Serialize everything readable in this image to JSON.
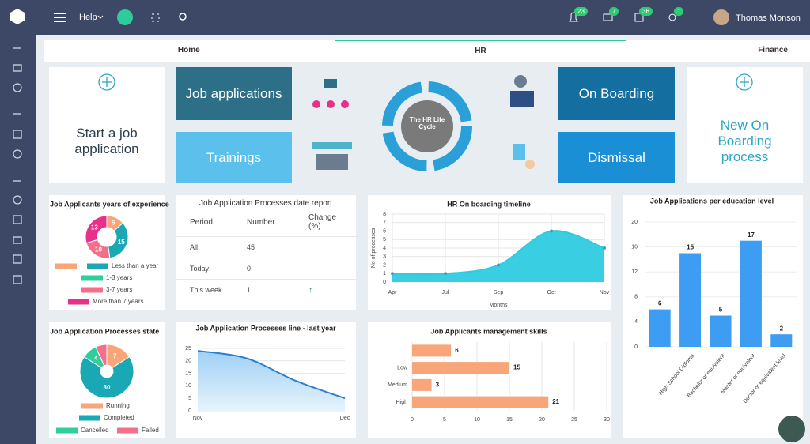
{
  "topbar": {
    "help": "Help",
    "badges": [
      23,
      7,
      36,
      1
    ],
    "user": "Thomas Monson"
  },
  "tabs": [
    "Home",
    "HR",
    "Finance"
  ],
  "tiles": {
    "start": "Start a job application",
    "job_applications": "Job applications",
    "trainings": "Trainings",
    "cycle": "The HR Life Cycle",
    "on_boarding": "On Boarding",
    "dismissal": "Dismissal",
    "new_on_boarding": "New On Boarding process"
  },
  "table": {
    "title": "Job Application Processes date report",
    "headers": [
      "Period",
      "Number",
      "Change (%)"
    ],
    "rows": [
      [
        "All",
        "45"
      ],
      [
        "Today",
        "0"
      ],
      [
        "This week",
        "1"
      ]
    ]
  },
  "chart_data": [
    {
      "type": "donut",
      "title": "Job Applicants years of experience",
      "categories": [
        null,
        "Less than a year",
        "1-3 years",
        "3-7 years",
        "More than 7 years"
      ],
      "values": [
        6,
        15,
        0,
        10,
        13
      ],
      "colors": [
        "#f9a57a",
        "#1ba8b5",
        "#2ecf9a",
        "#f46f8a",
        "#e8308a"
      ]
    },
    {
      "type": "area",
      "title": "HR On boarding timeline",
      "y_label": "No of processes",
      "x_label": "Months",
      "categories": [
        "Apr",
        "Jul",
        "Sep",
        "Oct",
        "Nov"
      ],
      "values": [
        1,
        1,
        2,
        6,
        4
      ],
      "color": "#2ecbe0",
      "ylim": [
        0,
        8
      ],
      "yticks": [
        0,
        1,
        2,
        3,
        4,
        5,
        6,
        7,
        8
      ],
      "grid": true
    },
    {
      "type": "bar",
      "title": "Job Applications per education level",
      "categories": [
        null,
        "High School Diploma",
        "Bachelor or equivalent",
        "Master or equivalent",
        "Doctor or equivalent level"
      ],
      "values": [
        6,
        15,
        5,
        17,
        2
      ],
      "color": "#3d9df2",
      "ylim": [
        0,
        20
      ],
      "yticks": [
        0,
        4,
        8,
        12,
        16,
        20
      ],
      "grid": true
    },
    {
      "type": "donut",
      "title": "Job Application Processes state",
      "categories": [
        "Running",
        "Completed",
        "Cancelled",
        "Failed"
      ],
      "values": [
        7,
        30,
        4,
        3
      ],
      "colors": [
        "#f9a57a",
        "#1ba8b5",
        "#2ecf9a",
        "#f46f8a"
      ]
    },
    {
      "type": "area",
      "title": "Job Application Processes line - last year",
      "categories": [
        "Nov",
        null,
        null,
        "Dec"
      ],
      "values": [
        24,
        21,
        12,
        5
      ],
      "color": "#2a7fd4",
      "ylim": [
        0,
        25
      ],
      "yticks": [
        0,
        5,
        10,
        15,
        20,
        25
      ],
      "grid": true
    },
    {
      "type": "bar",
      "horizontal": true,
      "title": "Job Applicants management skills",
      "categories": [
        null,
        "Low",
        "Medium",
        "High"
      ],
      "values": [
        6,
        15,
        3,
        21
      ],
      "color": "#f9a57a",
      "xlim": [
        0,
        30
      ],
      "xticks": [
        0,
        5,
        10,
        15,
        20,
        25,
        30
      ],
      "grid": true
    }
  ]
}
